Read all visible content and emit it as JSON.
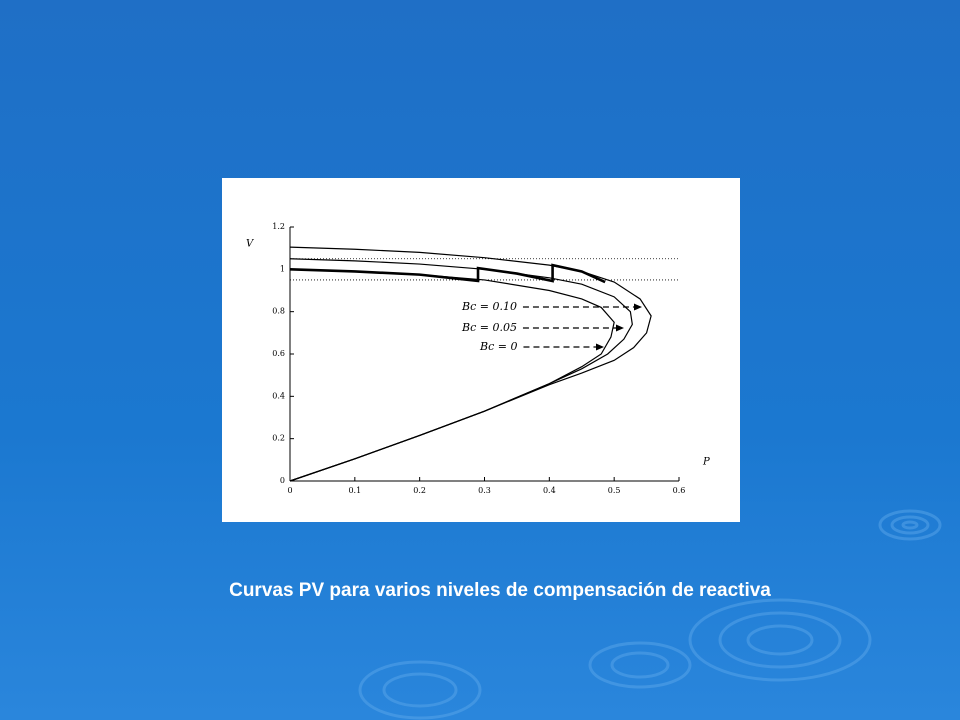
{
  "chart_data": {
    "type": "line",
    "caption": "Curvas PV para varios niveles de compensación de reactiva",
    "xlabel": "P",
    "ylabel": "V",
    "xlim": [
      0,
      0.6
    ],
    "xticks": [
      0,
      0.1,
      0.2,
      0.3,
      0.4,
      0.5,
      0.6
    ],
    "ylim": [
      0,
      1.2
    ],
    "yticks": [
      0,
      0.2,
      0.4,
      0.6,
      0.8,
      1,
      1.2
    ],
    "grid": false,
    "reference_lines": [
      1.05,
      0.95
    ],
    "series": [
      {
        "name": "Bc = 0.10",
        "color": "#000000",
        "x": [
          0,
          0.1,
          0.2,
          0.3,
          0.4,
          0.45,
          0.5,
          0.54,
          0.557,
          0.55,
          0.53,
          0.5,
          0.45,
          0.4,
          0.3,
          0.2,
          0.1,
          0
        ],
        "values": [
          1.105,
          1.095,
          1.08,
          1.055,
          1.02,
          0.99,
          0.94,
          0.86,
          0.78,
          0.7,
          0.63,
          0.57,
          0.51,
          0.455,
          0.33,
          0.215,
          0.105,
          0
        ]
      },
      {
        "name": "Bc = 0.05",
        "color": "#000000",
        "x": [
          0,
          0.1,
          0.2,
          0.3,
          0.4,
          0.45,
          0.5,
          0.525,
          0.528,
          0.515,
          0.49,
          0.45,
          0.4,
          0.3,
          0.2,
          0.1,
          0
        ],
        "values": [
          1.05,
          1.04,
          1.025,
          1.0,
          0.96,
          0.93,
          0.87,
          0.8,
          0.74,
          0.67,
          0.6,
          0.53,
          0.46,
          0.33,
          0.215,
          0.105,
          0
        ]
      },
      {
        "name": "Bc = 0",
        "color": "#000000",
        "x": [
          0,
          0.1,
          0.2,
          0.3,
          0.4,
          0.45,
          0.48,
          0.5,
          0.495,
          0.48,
          0.45,
          0.4,
          0.3,
          0.2,
          0.1,
          0
        ],
        "values": [
          1.0,
          0.99,
          0.975,
          0.95,
          0.9,
          0.86,
          0.82,
          0.75,
          0.68,
          0.6,
          0.54,
          0.46,
          0.33,
          0.215,
          0.105,
          0
        ]
      }
    ],
    "highlight": {
      "color": "#000000",
      "x": [
        0,
        0.1,
        0.2,
        0.29,
        0.29,
        0.35,
        0.405,
        0.405,
        0.45,
        0.486
      ],
      "values": [
        1.0,
        0.99,
        0.975,
        0.945,
        1.006,
        0.98,
        0.945,
        1.02,
        0.99,
        0.94
      ]
    }
  }
}
